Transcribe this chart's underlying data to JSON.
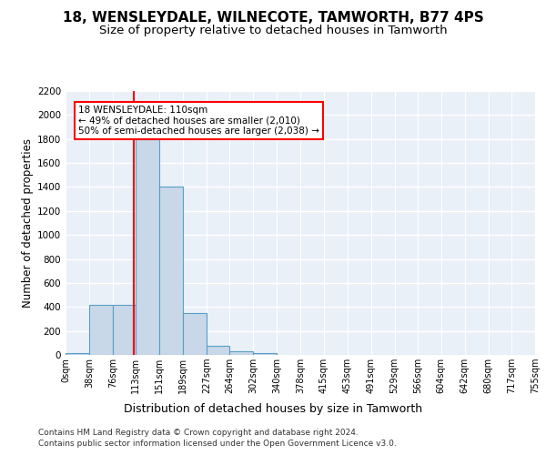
{
  "title": "18, WENSLEYDALE, WILNECOTE, TAMWORTH, B77 4PS",
  "subtitle": "Size of property relative to detached houses in Tamworth",
  "xlabel": "Distribution of detached houses by size in Tamworth",
  "ylabel": "Number of detached properties",
  "bin_edges": [
    0,
    38,
    76,
    113,
    151,
    189,
    227,
    264,
    302,
    340,
    378,
    415,
    453,
    491,
    529,
    566,
    604,
    642,
    680,
    717,
    755
  ],
  "bar_heights": [
    15,
    420,
    420,
    1800,
    1400,
    350,
    75,
    30,
    15,
    0,
    0,
    0,
    0,
    0,
    0,
    0,
    0,
    0,
    0,
    0
  ],
  "bar_color": "#c8d8e8",
  "bar_edge_color": "#5a9ec9",
  "property_size": 110,
  "vline_color": "red",
  "annotation_text": "18 WENSLEYDALE: 110sqm\n← 49% of detached houses are smaller (2,010)\n50% of semi-detached houses are larger (2,038) →",
  "annotation_box_color": "white",
  "annotation_box_edge_color": "red",
  "footer_line1": "Contains HM Land Registry data © Crown copyright and database right 2024.",
  "footer_line2": "Contains public sector information licensed under the Open Government Licence v3.0.",
  "ylim": [
    0,
    2200
  ],
  "background_color": "#eaf0f8",
  "grid_color": "white",
  "title_fontsize": 11,
  "subtitle_fontsize": 9.5,
  "xlabel_fontsize": 9,
  "ylabel_fontsize": 8.5,
  "tick_fontsize": 7,
  "footer_fontsize": 6.5,
  "annotation_fontsize": 7.5
}
